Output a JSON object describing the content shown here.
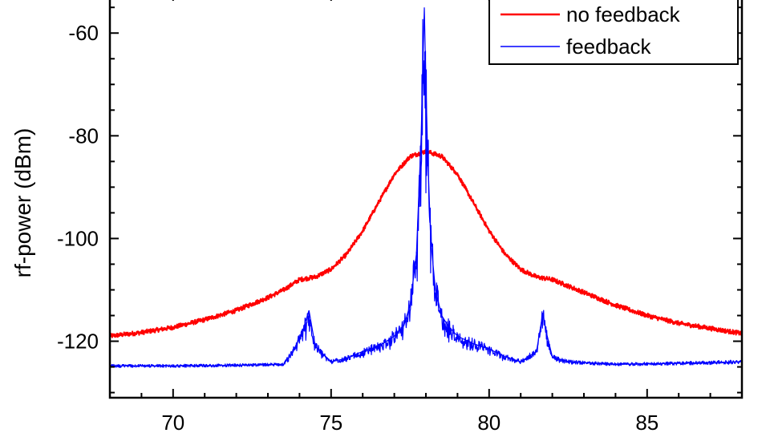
{
  "chart_data": {
    "type": "line",
    "xlabel": "",
    "ylabel": "rf-power (dBm)",
    "xlim": [
      68,
      88
    ],
    "ylim": [
      -131,
      -52
    ],
    "x_ticks": [
      70,
      75,
      80,
      85
    ],
    "y_ticks": [
      -60,
      -80,
      -100,
      -120
    ],
    "grid": false,
    "legend_position": "top-right",
    "series": [
      {
        "name": "no feedback",
        "color": "#ff0000",
        "x": [
          68,
          69,
          70,
          71,
          72,
          73,
          73.5,
          74,
          74.5,
          75,
          75.5,
          76,
          76.5,
          77,
          77.5,
          78,
          78.5,
          79,
          79.5,
          80,
          80.5,
          81,
          81.5,
          82,
          83,
          84,
          85,
          86,
          87,
          88
        ],
        "y": [
          -119,
          -118.3,
          -117.3,
          -115.8,
          -114,
          -111.5,
          -110,
          -108,
          -107.5,
          -106,
          -103,
          -98.5,
          -93,
          -87.5,
          -84,
          -83,
          -84,
          -87.5,
          -93,
          -98.5,
          -103,
          -106,
          -107.5,
          -108,
          -110.5,
          -113,
          -115,
          -116.5,
          -117.5,
          -118.5
        ]
      },
      {
        "name": "feedback",
        "color": "#0000ff",
        "x": [
          68,
          70,
          72,
          73.5,
          73.8,
          74.1,
          74.3,
          74.5,
          75,
          75.5,
          76,
          76.5,
          77,
          77.3,
          77.5,
          77.7,
          77.85,
          77.95,
          78,
          78.05,
          78.15,
          78.3,
          78.5,
          78.7,
          79,
          79.5,
          80,
          80.5,
          81,
          81.5,
          81.7,
          81.8,
          82,
          82.5,
          84,
          86,
          88
        ],
        "y": [
          -124.8,
          -124.8,
          -124.7,
          -124.5,
          -122,
          -118,
          -114,
          -121,
          -124,
          -123.3,
          -122,
          -121,
          -119,
          -117,
          -113,
          -103,
          -80,
          -55,
          -70,
          -82,
          -100,
          -110,
          -115,
          -117,
          -119,
          -120.5,
          -121.5,
          -123,
          -124,
          -122,
          -114.5,
          -118,
          -123,
          -124,
          -124.5,
          -124.3,
          -124
        ]
      }
    ]
  }
}
